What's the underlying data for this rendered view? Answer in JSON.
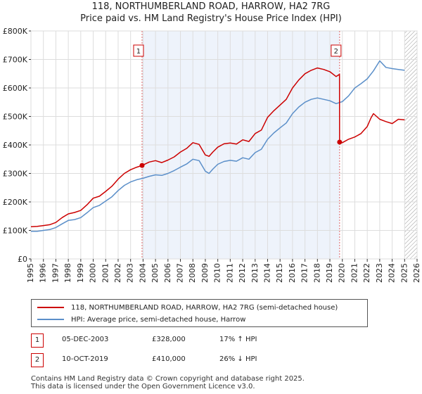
{
  "header": {
    "title": "118, NORTHUMBERLAND ROAD, HARROW, HA2 7RG",
    "subtitle": "Price paid vs. HM Land Registry's House Price Index (HPI)"
  },
  "chart_data": {
    "type": "line",
    "title": "118, NORTHUMBERLAND ROAD, HARROW, HA2 7RG",
    "subtitle": "Price paid vs. HM Land Registry's House Price Index (HPI)",
    "xlim": [
      1995,
      2026
    ],
    "ylim": [
      0,
      800000
    ],
    "y_ticks": [
      0,
      100000,
      200000,
      300000,
      400000,
      500000,
      600000,
      700000,
      800000
    ],
    "y_tick_labels": [
      "£0",
      "£100K",
      "£200K",
      "£300K",
      "£400K",
      "£500K",
      "£600K",
      "£700K",
      "£800K"
    ],
    "x_ticks": [
      1995,
      1996,
      1997,
      1998,
      1999,
      2000,
      2001,
      2002,
      2003,
      2004,
      2005,
      2006,
      2007,
      2008,
      2009,
      2010,
      2011,
      2012,
      2013,
      2014,
      2015,
      2016,
      2017,
      2018,
      2019,
      2020,
      2021,
      2022,
      2023,
      2024,
      2025,
      2026
    ],
    "x_tick_labels": [
      "1995",
      "1996",
      "1997",
      "1998",
      "1999",
      "2000",
      "2001",
      "2002",
      "2003",
      "2004",
      "2005",
      "2006",
      "2007",
      "2008",
      "2009",
      "2010",
      "2011",
      "2012",
      "2013",
      "2014",
      "2015",
      "2016",
      "2017",
      "2018",
      "2019",
      "2020",
      "2021",
      "2022",
      "2023",
      "2024",
      "2025",
      "2026"
    ],
    "grid": true,
    "shaded_period": [
      2003.92,
      2019.78
    ],
    "hatched_after": 2025.0,
    "series": [
      {
        "name": "118, NORTHUMBERLAND ROAD, HARROW, HA2 7RG (semi-detached house)",
        "color": "#cc0000",
        "x": [
          1995,
          1995.5,
          1996,
          1996.5,
          1997,
          1997.5,
          1998,
          1998.5,
          1999,
          1999.5,
          2000,
          2000.5,
          2001,
          2001.5,
          2002,
          2002.5,
          2003,
          2003.5,
          2003.92,
          2004.5,
          2005,
          2005.5,
          2006,
          2006.5,
          2007,
          2007.5,
          2008,
          2008.5,
          2009,
          2009.3,
          2009.6,
          2010,
          2010.5,
          2011,
          2011.5,
          2012,
          2012.5,
          2013,
          2013.5,
          2014,
          2014.5,
          2015,
          2015.5,
          2016,
          2016.5,
          2017,
          2017.5,
          2018,
          2018.5,
          2019,
          2019.5,
          2019.77,
          2019.78,
          2020,
          2020.5,
          2021,
          2021.5,
          2022,
          2022.3,
          2022.5,
          2023,
          2023.5,
          2024,
          2024.5,
          2025
        ],
        "values": [
          113000,
          114000,
          117000,
          120000,
          128000,
          145000,
          158000,
          163000,
          170000,
          190000,
          213000,
          220000,
          237000,
          255000,
          280000,
          300000,
          313000,
          322000,
          328000,
          340000,
          345000,
          338000,
          347000,
          358000,
          375000,
          388000,
          408000,
          402000,
          365000,
          360000,
          375000,
          392000,
          404000,
          407000,
          403000,
          418000,
          412000,
          440000,
          452000,
          497000,
          520000,
          540000,
          560000,
          600000,
          628000,
          650000,
          662000,
          670000,
          665000,
          657000,
          640000,
          648000,
          410000,
          408000,
          420000,
          428000,
          440000,
          465000,
          495000,
          510000,
          490000,
          482000,
          475000,
          490000,
          488000
        ]
      },
      {
        "name": "HPI: Average price, semi-detached house, Harrow",
        "color": "#5b8fc9",
        "x": [
          1995,
          1995.5,
          1996,
          1996.5,
          1997,
          1997.5,
          1998,
          1998.5,
          1999,
          1999.5,
          2000,
          2000.5,
          2001,
          2001.5,
          2002,
          2002.5,
          2003,
          2003.5,
          2004,
          2004.5,
          2005,
          2005.5,
          2006,
          2006.5,
          2007,
          2007.5,
          2008,
          2008.5,
          2009,
          2009.3,
          2009.6,
          2010,
          2010.5,
          2011,
          2011.5,
          2012,
          2012.5,
          2013,
          2013.5,
          2014,
          2014.5,
          2015,
          2015.5,
          2016,
          2016.5,
          2017,
          2017.5,
          2018,
          2018.5,
          2019,
          2019.5,
          2020,
          2020.5,
          2021,
          2021.5,
          2022,
          2022.5,
          2023,
          2023.5,
          2024,
          2024.5,
          2025
        ],
        "values": [
          97000,
          97000,
          100000,
          103000,
          110000,
          123000,
          135000,
          138000,
          145000,
          162000,
          180000,
          188000,
          203000,
          218000,
          240000,
          258000,
          270000,
          278000,
          283000,
          290000,
          295000,
          293000,
          300000,
          310000,
          322000,
          333000,
          350000,
          345000,
          308000,
          300000,
          315000,
          332000,
          342000,
          346000,
          343000,
          355000,
          350000,
          373000,
          385000,
          420000,
          442000,
          460000,
          477000,
          510000,
          533000,
          550000,
          560000,
          565000,
          560000,
          555000,
          545000,
          552000,
          572000,
          600000,
          615000,
          632000,
          660000,
          695000,
          672000,
          668000,
          665000,
          662000
        ]
      }
    ],
    "markers": [
      {
        "label": "1",
        "x": 2003.92,
        "y": 328000
      },
      {
        "label": "2",
        "x": 2019.78,
        "y": 410000
      }
    ]
  },
  "legend": {
    "items": [
      {
        "label": "118, NORTHUMBERLAND ROAD, HARROW, HA2 7RG (semi-detached house)",
        "color": "#cc0000"
      },
      {
        "label": "HPI: Average price, semi-detached house, Harrow",
        "color": "#5b8fc9"
      }
    ]
  },
  "transactions": [
    {
      "num": "1",
      "date": "05-DEC-2003",
      "price": "£328,000",
      "hpi": "17% ↑ HPI"
    },
    {
      "num": "2",
      "date": "10-OCT-2019",
      "price": "£410,000",
      "hpi": "26% ↓ HPI"
    }
  ],
  "footer": {
    "line1": "Contains HM Land Registry data © Crown copyright and database right 2025.",
    "line2": "This data is licensed under the Open Government Licence v3.0."
  }
}
